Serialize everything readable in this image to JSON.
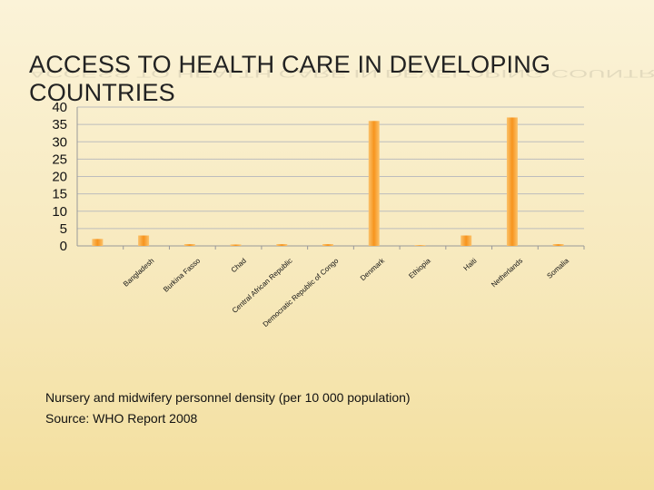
{
  "slide": {
    "title": "ACCESS TO HEALTH CARE IN DEVELOPING COUNTRIES",
    "caption_line1": "Nursery and midwifery personnel density (per 10 000 population)",
    "caption_line2": "Source: WHO Report 2008"
  },
  "colors": {
    "bar": "#f7941d",
    "bar_light": "#fbc26b",
    "grid": "#bdbdbd",
    "text": "#111111"
  },
  "chart_data": {
    "type": "bar",
    "categories": [
      "",
      "Bangladesh",
      "Burkina Fasso",
      "Chad",
      "Central African Republic",
      "Democratic Republic of Congo",
      "Denmark",
      "Ethiopia",
      "Haiti",
      "Netherlands",
      "Somalia"
    ],
    "values": [
      2,
      3,
      0.5,
      0.4,
      0.5,
      0.5,
      36,
      0.2,
      3,
      37,
      0.5
    ],
    "ylim": [
      0,
      40
    ],
    "yticks": [
      0,
      5,
      10,
      15,
      20,
      25,
      30,
      35,
      40
    ],
    "title": "",
    "xlabel": "",
    "ylabel": "",
    "grid": true,
    "legend": "none"
  }
}
